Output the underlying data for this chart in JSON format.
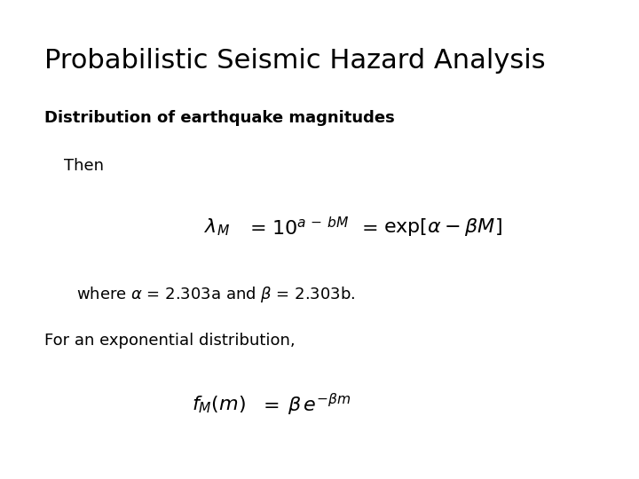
{
  "title": "Probabilistic Seismic Hazard Analysis",
  "subtitle": "Distribution of earthquake magnitudes",
  "background_color": "#ffffff",
  "text_color": "#000000",
  "title_fontsize": 22,
  "subtitle_fontsize": 13,
  "body_fontsize": 13,
  "eq_fontsize": 16
}
